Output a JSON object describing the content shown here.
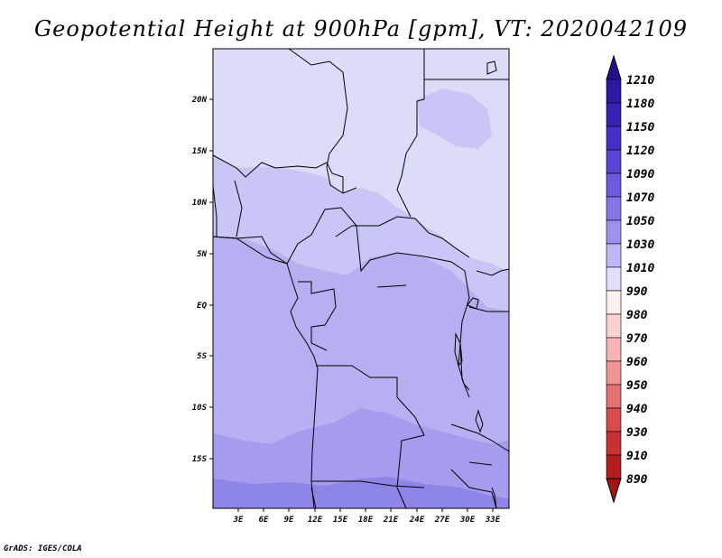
{
  "title": "Geopotential Height at 900hPa [gpm], VT: 2020042109",
  "credit": "GrADS: IGES/COLA",
  "map": {
    "lat_labels": [
      "20N",
      "15N",
      "10N",
      "5N",
      "EQ",
      "5S",
      "10S",
      "15S"
    ],
    "lon_labels": [
      "3E",
      "6E",
      "9E",
      "12E",
      "15E",
      "18E",
      "21E",
      "24E",
      "27E",
      "30E",
      "33E"
    ],
    "colors": {
      "c1010": "#dcdcf8",
      "c1030": "#c8c6f6",
      "c1050": "#b4b0f2",
      "c1070": "#a49cee",
      "c1090": "#8e86e6",
      "land_border": "#000000"
    }
  },
  "colorbar": {
    "levels": [
      "1210",
      "1180",
      "1150",
      "1120",
      "1090",
      "1070",
      "1050",
      "1030",
      "1010",
      "990",
      "980",
      "970",
      "960",
      "950",
      "940",
      "930",
      "910",
      "890"
    ],
    "colors": [
      "#26108c",
      "#2b1aa2",
      "#3322b4",
      "#4232c8",
      "#5646d4",
      "#6a5ade",
      "#8476e6",
      "#9c92ee",
      "#bcb6f4",
      "#e2e0fa",
      "#fff0f0",
      "#fcd2d2",
      "#f8b4b4",
      "#f09494",
      "#e47070",
      "#d84c4c",
      "#c83232",
      "#b41e1e",
      "#a01414"
    ]
  }
}
